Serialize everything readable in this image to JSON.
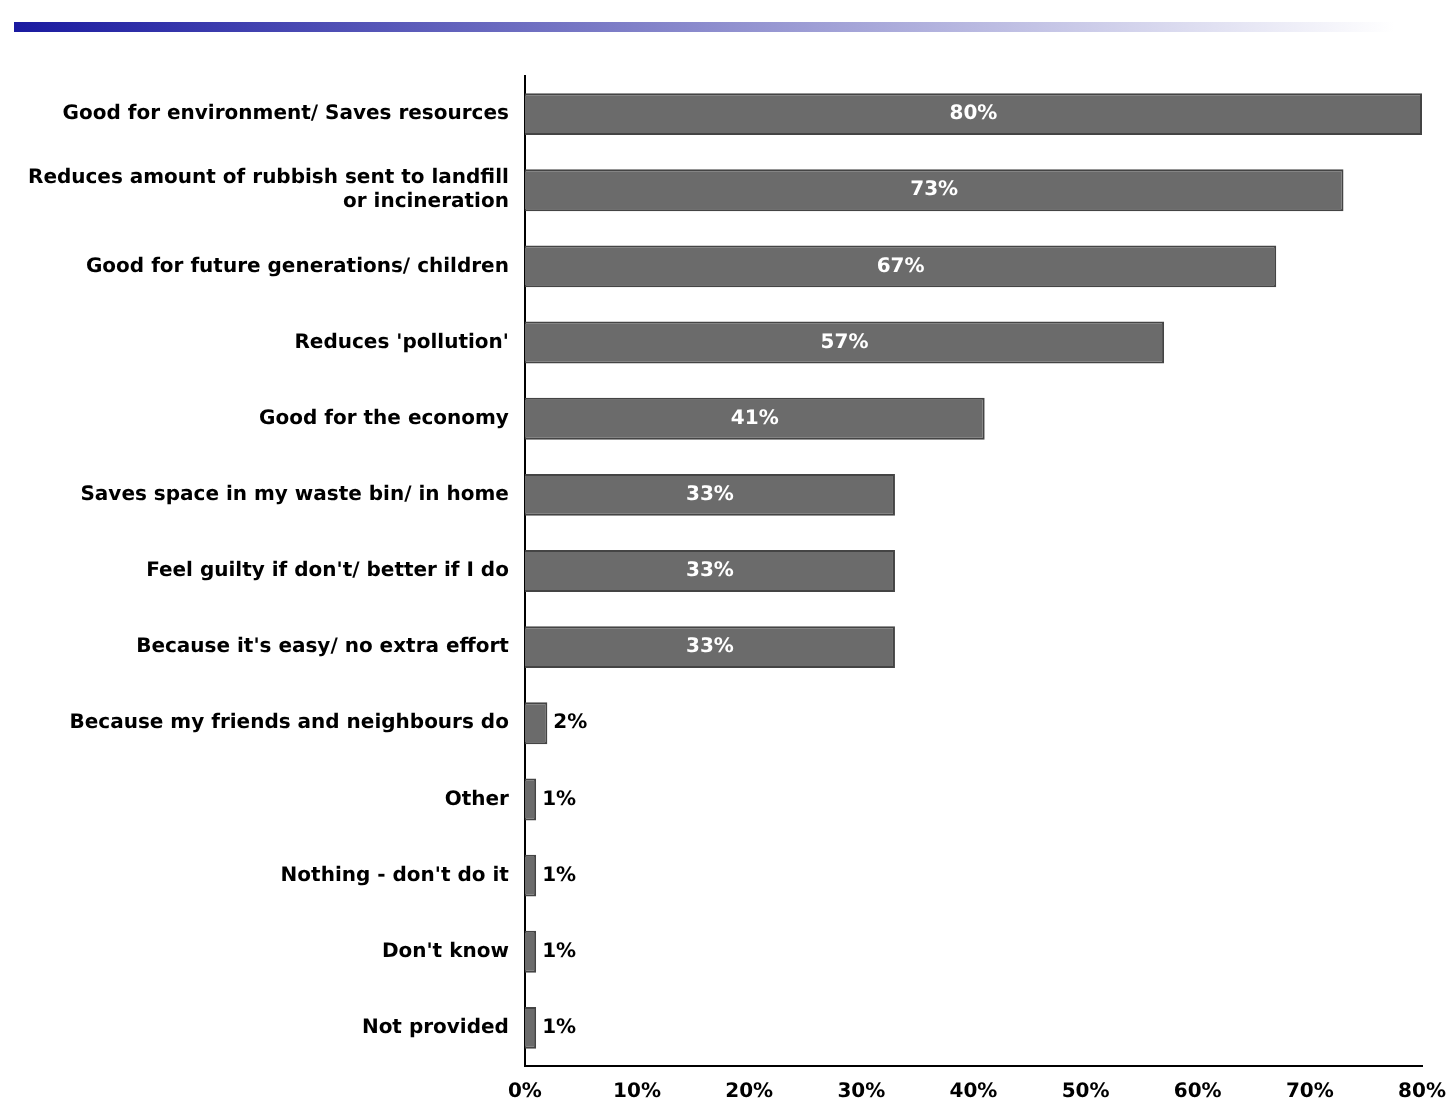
{
  "chart_data": {
    "type": "bar",
    "orientation": "horizontal",
    "categories": [
      "Good for environment/ Saves resources",
      "Reduces amount of rubbish sent to landfill or incineration",
      "Good for future generations/ children",
      "Reduces 'pollution'",
      "Good for the economy",
      "Saves space in my waste bin/ in home",
      "Feel guilty if don't/ better if I do",
      "Because it's easy/ no extra effort",
      "Because my friends and neighbours do",
      "Other",
      "Nothing - don't do it",
      "Don't know",
      "Not provided"
    ],
    "values": [
      80,
      73,
      67,
      57,
      41,
      33,
      33,
      33,
      2,
      1,
      1,
      1,
      1
    ],
    "value_labels": [
      "80%",
      "73%",
      "67%",
      "57%",
      "41%",
      "33%",
      "33%",
      "33%",
      "2%",
      "1%",
      "1%",
      "1%",
      "1%"
    ],
    "color": "#6b6b6b",
    "xlim": [
      0,
      80
    ],
    "xticks": [
      {
        "value": 0,
        "label": "0%"
      },
      {
        "value": 10,
        "label": "10%"
      },
      {
        "value": 20,
        "label": "20%"
      },
      {
        "value": 30,
        "label": "30%"
      },
      {
        "value": 40,
        "label": "40%"
      },
      {
        "value": 50,
        "label": "50%"
      },
      {
        "value": 60,
        "label": "60%"
      },
      {
        "value": 70,
        "label": "70%"
      },
      {
        "value": 80,
        "label": "80%"
      }
    ],
    "grid": false,
    "legend": false
  }
}
